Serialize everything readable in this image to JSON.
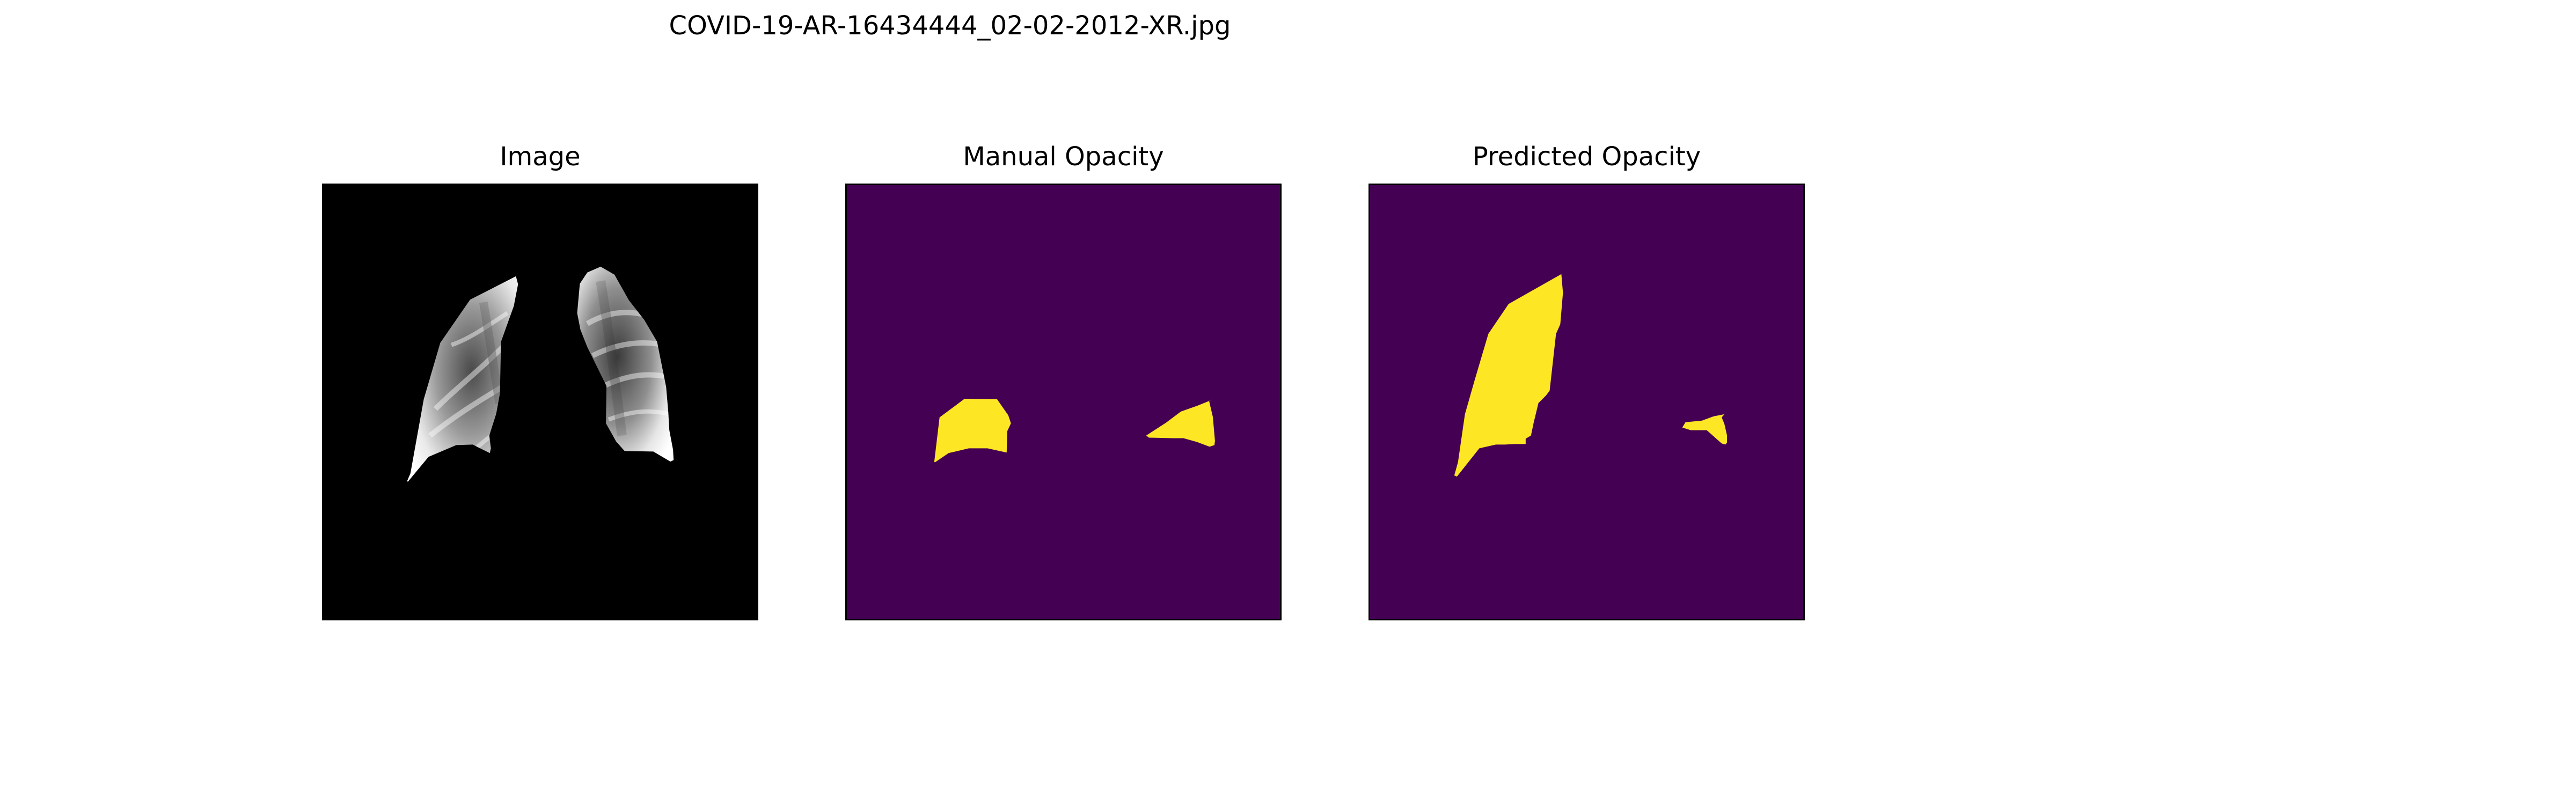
{
  "figure": {
    "title": "COVID-19-AR-16434444_02-02-2012-XR.jpg"
  },
  "panels": [
    {
      "title": "Image"
    },
    {
      "title": "Manual Opacity"
    },
    {
      "title": "Predicted Opacity"
    }
  ],
  "colors": {
    "background": "#000000",
    "mask_background": "#440154",
    "mask_foreground": "#fde725",
    "lung_light": "#ffffff",
    "lung_mid": "#8f8f8f",
    "lung_dark": "#2b2b2b"
  },
  "icons": {
    "image_panel": "xray-lungs-icon",
    "manual_panel": "manual-mask-icon",
    "predicted_panel": "predicted-mask-icon"
  }
}
